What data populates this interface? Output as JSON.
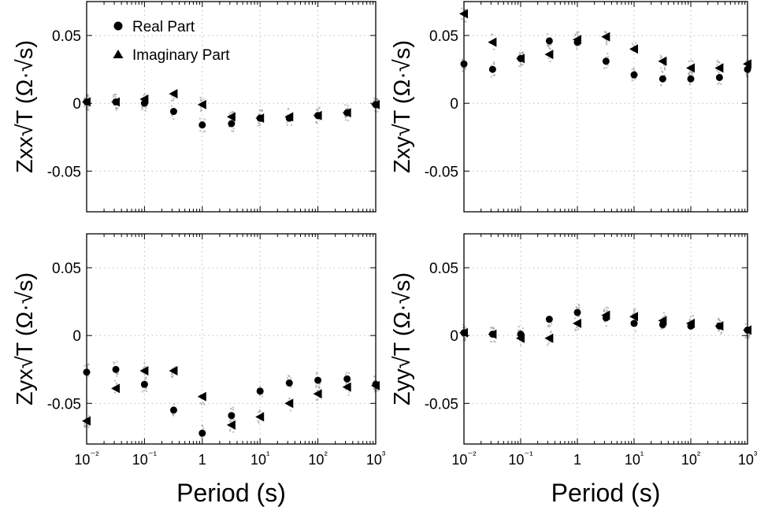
{
  "chart_data": [
    {
      "type": "scatter",
      "panel": "Zxx",
      "ylabel": "Zxx√T (Ω·√s)",
      "xlabel": "",
      "x_scale": "log",
      "xlim": [
        0.01,
        1000
      ],
      "ylim": [
        -0.08,
        0.075
      ],
      "yticks": [
        0.05,
        0,
        -0.05
      ],
      "ytick_labels": [
        "0.05",
        "0",
        "-0.05"
      ],
      "xticks": [
        0.01,
        0.1,
        1,
        10,
        100,
        1000
      ],
      "xtick_labels": [],
      "grid": true,
      "legend_position": "top-left",
      "series": [
        {
          "name": "Real Part",
          "marker": "circle",
          "x": [
            0.01,
            0.032,
            0.1,
            0.32,
            1,
            3.2,
            10,
            32,
            100,
            320,
            1000
          ],
          "y": [
            0.001,
            0.001,
            0.0,
            -0.006,
            -0.016,
            -0.015,
            -0.011,
            -0.011,
            -0.009,
            -0.007,
            -0.001
          ]
        },
        {
          "name": "Imaginary Part",
          "marker": "triangle",
          "x": [
            0.01,
            0.032,
            0.1,
            0.32,
            1,
            3.2,
            10,
            32,
            100,
            320,
            1000
          ],
          "y": [
            0.001,
            0.001,
            0.003,
            0.007,
            -0.001,
            -0.01,
            -0.011,
            -0.01,
            -0.009,
            -0.007,
            -0.001
          ]
        }
      ]
    },
    {
      "type": "scatter",
      "panel": "Zxy",
      "ylabel": "Zxy√T (Ω·√s)",
      "xlabel": "",
      "x_scale": "log",
      "xlim": [
        0.01,
        1000
      ],
      "ylim": [
        -0.08,
        0.075
      ],
      "yticks": [
        0.05,
        0,
        -0.05
      ],
      "ytick_labels": [
        "0.05",
        "0",
        "-0.05"
      ],
      "xticks": [
        0.01,
        0.1,
        1,
        10,
        100,
        1000
      ],
      "xtick_labels": [],
      "grid": true,
      "series": [
        {
          "name": "Real Part",
          "marker": "circle",
          "x": [
            0.01,
            0.032,
            0.1,
            0.32,
            1,
            3.2,
            10,
            32,
            100,
            320,
            1000
          ],
          "y": [
            0.029,
            0.025,
            0.033,
            0.046,
            0.045,
            0.031,
            0.021,
            0.018,
            0.018,
            0.019,
            0.025
          ]
        },
        {
          "name": "Imaginary Part",
          "marker": "triangle",
          "x": [
            0.01,
            0.032,
            0.1,
            0.32,
            1,
            3.2,
            10,
            32,
            100,
            320,
            1000
          ],
          "y": [
            0.066,
            0.045,
            0.033,
            0.036,
            0.047,
            0.049,
            0.04,
            0.031,
            0.026,
            0.026,
            0.029
          ]
        }
      ]
    },
    {
      "type": "scatter",
      "panel": "Zyx",
      "ylabel": "Zyx√T (Ω·√s)",
      "xlabel": "Period (s)",
      "x_scale": "log",
      "xlim": [
        0.01,
        1000
      ],
      "ylim": [
        -0.08,
        0.075
      ],
      "yticks": [
        0.05,
        0,
        -0.05
      ],
      "ytick_labels": [
        "0.05",
        "0",
        "-0.05"
      ],
      "xticks": [
        0.01,
        0.1,
        1,
        10,
        100,
        1000
      ],
      "xtick_labels": [
        "10⁻²",
        "10⁻¹",
        "1",
        "10¹",
        "10²",
        "10³"
      ],
      "grid": true,
      "series": [
        {
          "name": "Real Part",
          "marker": "circle",
          "x": [
            0.01,
            0.032,
            0.1,
            0.32,
            1,
            3.2,
            10,
            32,
            100,
            320,
            1000
          ],
          "y": [
            -0.027,
            -0.025,
            -0.036,
            -0.055,
            -0.072,
            -0.059,
            -0.041,
            -0.035,
            -0.033,
            -0.032,
            -0.036
          ]
        },
        {
          "name": "Imaginary Part",
          "marker": "triangle",
          "x": [
            0.01,
            0.032,
            0.1,
            0.32,
            1,
            3.2,
            10,
            32,
            100,
            320,
            1000
          ],
          "y": [
            -0.063,
            -0.039,
            -0.026,
            -0.026,
            -0.045,
            -0.066,
            -0.06,
            -0.05,
            -0.043,
            -0.038,
            -0.037
          ]
        }
      ]
    },
    {
      "type": "scatter",
      "panel": "Zyy",
      "ylabel": "Zyy√T (Ω·√s)",
      "xlabel": "Period (s)",
      "x_scale": "log",
      "xlim": [
        0.01,
        1000
      ],
      "ylim": [
        -0.08,
        0.075
      ],
      "yticks": [
        0.05,
        0,
        -0.05
      ],
      "ytick_labels": [
        "0.05",
        "0",
        "-0.05"
      ],
      "xticks": [
        0.01,
        0.1,
        1,
        10,
        100,
        1000
      ],
      "xtick_labels": [
        "10⁻²",
        "10⁻¹",
        "1",
        "10¹",
        "10²",
        "10³"
      ],
      "grid": true,
      "series": [
        {
          "name": "Real Part",
          "marker": "circle",
          "x": [
            0.01,
            0.032,
            0.1,
            0.32,
            1,
            3.2,
            10,
            32,
            100,
            320,
            1000
          ],
          "y": [
            0.002,
            0.001,
            0.001,
            0.012,
            0.017,
            0.013,
            0.009,
            0.008,
            0.007,
            0.007,
            0.004
          ]
        },
        {
          "name": "Imaginary Part",
          "marker": "triangle",
          "x": [
            0.01,
            0.032,
            0.1,
            0.32,
            1,
            3.2,
            10,
            32,
            100,
            320,
            1000
          ],
          "y": [
            0.002,
            0.001,
            -0.002,
            -0.002,
            0.009,
            0.015,
            0.014,
            0.011,
            0.009,
            0.007,
            0.004
          ]
        }
      ]
    }
  ],
  "legend": {
    "items": [
      {
        "label": "Real Part",
        "marker": "circle"
      },
      {
        "label": "Imaginary Part",
        "marker": "triangle"
      }
    ]
  },
  "colors": {
    "marker": "#000000",
    "grid": "#bdbdbd",
    "scatter_cloud": "#9e9e9e"
  }
}
